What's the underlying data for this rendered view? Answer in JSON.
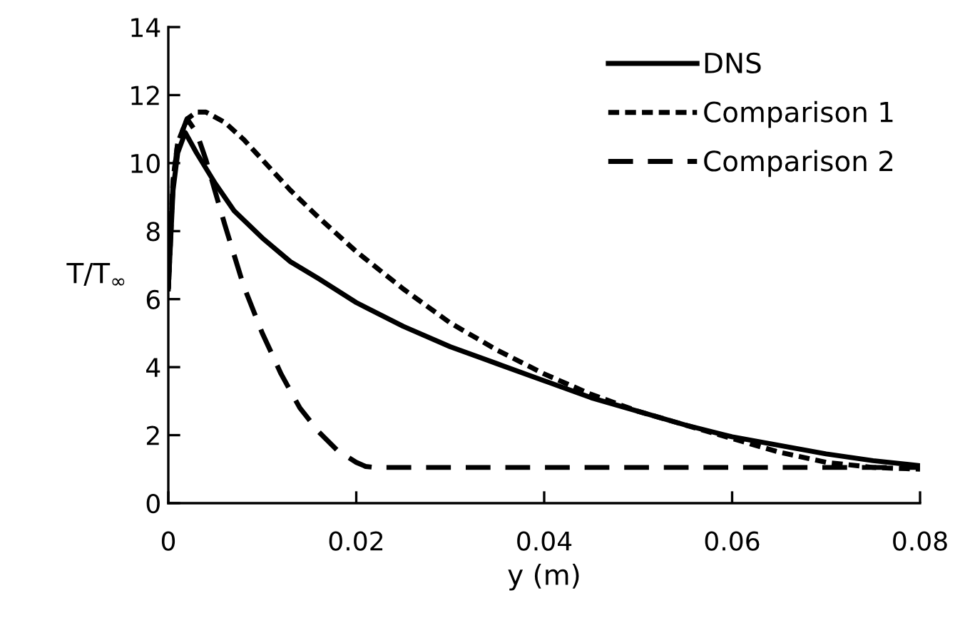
{
  "chart_data": {
    "type": "line",
    "xlabel": "y (m)",
    "ylabel": "T/T$_{∞}$",
    "xlim": [
      0,
      0.08
    ],
    "xticks": [
      0,
      0.02,
      0.04,
      0.06,
      0.08
    ],
    "ylim": [
      0,
      14
    ],
    "yticks": [
      0,
      2,
      4,
      6,
      8,
      10,
      12,
      14
    ],
    "grid": false,
    "legend": "top right",
    "marker": "none",
    "series": [
      {
        "name": "DNS",
        "color": "#000000",
        "line_style": "solid",
        "x": [
          0,
          0.0005,
          0.001,
          0.0018,
          0.003,
          0.005,
          0.007,
          0.01,
          0.013,
          0.016,
          0.02,
          0.025,
          0.03,
          0.035,
          0.04,
          0.045,
          0.05,
          0.055,
          0.06,
          0.065,
          0.07,
          0.075,
          0.08
        ],
        "values": [
          6.3,
          9.2,
          10.3,
          10.9,
          10.3,
          9.4,
          8.6,
          7.8,
          7.1,
          6.6,
          5.9,
          5.2,
          4.6,
          4.1,
          3.6,
          3.1,
          2.7,
          2.3,
          1.95,
          1.7,
          1.45,
          1.25,
          1.1
        ]
      },
      {
        "name": "Comparison 1",
        "color": "#000000",
        "line_style": "dotted",
        "x": [
          0,
          0.0005,
          0.001,
          0.002,
          0.003,
          0.004,
          0.006,
          0.008,
          0.01,
          0.013,
          0.016,
          0.02,
          0.025,
          0.03,
          0.035,
          0.04,
          0.045,
          0.05,
          0.055,
          0.06,
          0.065,
          0.07,
          0.075,
          0.08
        ],
        "values": [
          6.3,
          9.5,
          10.6,
          11.3,
          11.5,
          11.5,
          11.2,
          10.7,
          10.1,
          9.2,
          8.4,
          7.4,
          6.3,
          5.3,
          4.5,
          3.8,
          3.2,
          2.7,
          2.3,
          1.9,
          1.5,
          1.2,
          1.05,
          1.0
        ]
      },
      {
        "name": "Comparison 2",
        "color": "#000000",
        "line_style": "dashed",
        "x": [
          0,
          0.0005,
          0.001,
          0.002,
          0.003,
          0.004,
          0.006,
          0.008,
          0.01,
          0.012,
          0.014,
          0.016,
          0.018,
          0.02,
          0.021,
          0.022,
          0.03,
          0.04,
          0.05,
          0.06,
          0.07,
          0.08
        ],
        "values": [
          6.3,
          9.4,
          10.6,
          11.3,
          10.9,
          10.1,
          8.2,
          6.4,
          5.0,
          3.8,
          2.8,
          2.1,
          1.55,
          1.2,
          1.08,
          1.05,
          1.05,
          1.05,
          1.05,
          1.05,
          1.05,
          1.05
        ]
      }
    ]
  }
}
